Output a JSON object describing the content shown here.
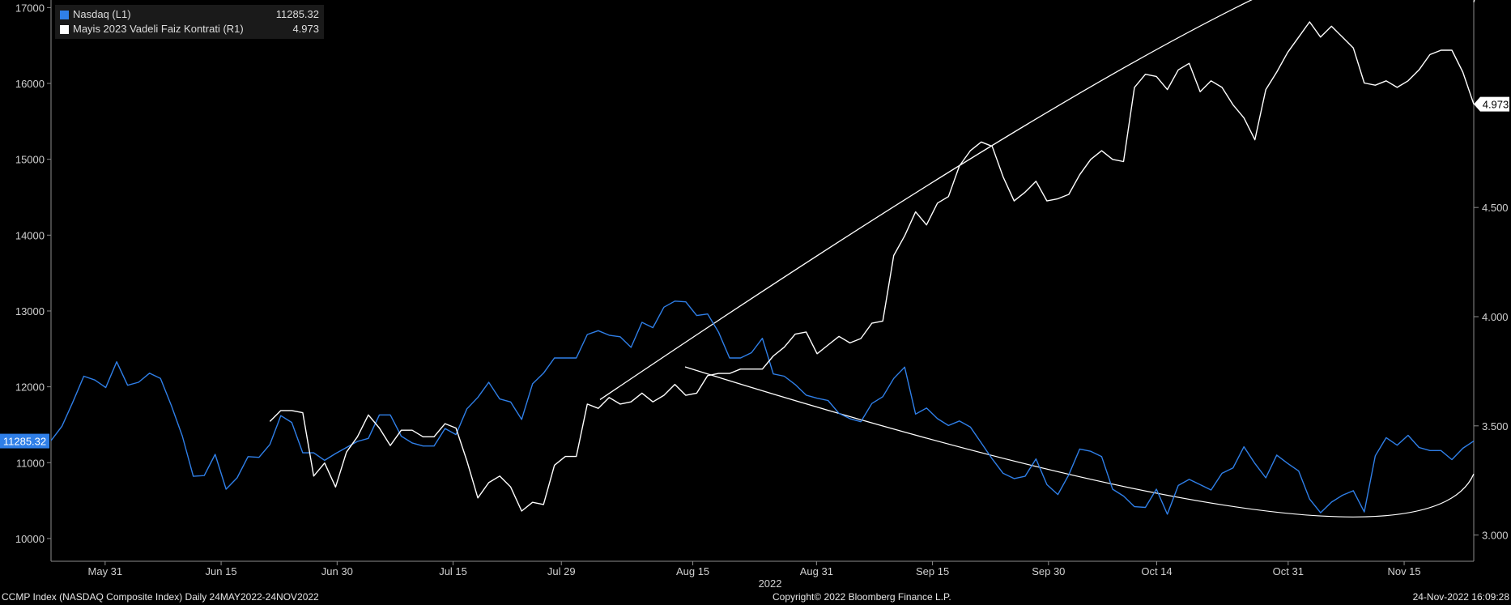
{
  "legend": {
    "items": [
      {
        "label": "Nasdaq (L1)",
        "value": "11285.32",
        "color": "#2f7fe8"
      },
      {
        "label": "Mayis 2023 Vadeli Faiz Kontrati (R1)",
        "value": "4.973",
        "color": "#ffffff"
      }
    ]
  },
  "footer": {
    "left": "CCMP Index (NASDAQ Composite Index)  Daily 24MAY2022-24NOV2022",
    "center": "Copyright© 2022 Bloomberg Finance L.P.",
    "right": "24-Nov-2022 16:09:28"
  },
  "chart_data": {
    "type": "line",
    "x_range": [
      "2022-05-24",
      "2022-11-24"
    ],
    "x_ticks": [
      "May 31",
      "Jun 15",
      "Jun 30",
      "Jul 15",
      "Jul 29",
      "Aug 15",
      "Aug 31",
      "Sep 15",
      "Sep 30",
      "Oct 14",
      "Oct 31",
      "Nov 15"
    ],
    "x_year_label": "2022",
    "left_axis": {
      "ylim": [
        9700,
        17100
      ],
      "ticks": [
        10000,
        11000,
        12000,
        13000,
        14000,
        15000,
        16000,
        17000
      ]
    },
    "right_axis": {
      "ylim": [
        2.88,
        5.45
      ],
      "ticks": [
        "3.000",
        "3.500",
        "4.000",
        "4.500"
      ]
    },
    "last_value_labels": {
      "left": "11285.32",
      "right": "4.973"
    },
    "series": [
      {
        "name": "Nasdaq (L1)",
        "axis": "left",
        "color": "#2f7fe8",
        "values": [
          11290,
          11480,
          11800,
          12140,
          12090,
          11990,
          12330,
          12020,
          12060,
          12180,
          12110,
          11750,
          11350,
          10820,
          10830,
          11110,
          10650,
          10800,
          11080,
          11070,
          11240,
          11620,
          11530,
          11130,
          11130,
          11030,
          11120,
          11200,
          11280,
          11320,
          11630,
          11630,
          11350,
          11260,
          11220,
          11220,
          11450,
          11370,
          11710,
          11860,
          12060,
          11840,
          11800,
          11570,
          12040,
          12180,
          12380,
          12380,
          12380,
          12690,
          12740,
          12680,
          12660,
          12520,
          12850,
          12780,
          13050,
          13130,
          13120,
          12940,
          12960,
          12720,
          12380,
          12380,
          12450,
          12640,
          12170,
          12140,
          12030,
          11890,
          11850,
          11820,
          11650,
          11580,
          11540,
          11780,
          11870,
          12110,
          12260,
          11640,
          11720,
          11580,
          11490,
          11550,
          11470,
          11260,
          11050,
          10860,
          10790,
          10820,
          11050,
          10710,
          10580,
          10840,
          11180,
          11150,
          11080,
          10650,
          10560,
          10420,
          10410,
          10650,
          10320,
          10700,
          10780,
          10710,
          10640,
          10860,
          10930,
          11210,
          10990,
          10800,
          11100,
          10990,
          10890,
          10520,
          10340,
          10480,
          10570,
          10630,
          10350,
          11090,
          11330,
          11230,
          11360,
          11200,
          11160,
          11160,
          11040,
          11190,
          11285
        ]
      },
      {
        "name": "Mayis 2023 Vadeli Faiz Kontrati (R1)",
        "axis": "right",
        "color": "#ffffff",
        "values": [
          null,
          null,
          null,
          null,
          null,
          null,
          null,
          null,
          null,
          null,
          null,
          null,
          null,
          null,
          null,
          null,
          null,
          null,
          null,
          null,
          3.52,
          3.57,
          3.57,
          3.56,
          3.27,
          3.33,
          3.22,
          3.38,
          3.45,
          3.55,
          3.49,
          3.41,
          3.48,
          3.48,
          3.45,
          3.45,
          3.51,
          3.49,
          3.34,
          3.17,
          3.24,
          3.27,
          3.22,
          3.11,
          3.15,
          3.14,
          3.32,
          3.36,
          3.36,
          3.6,
          3.58,
          3.63,
          3.6,
          3.61,
          3.65,
          3.61,
          3.64,
          3.69,
          3.64,
          3.65,
          3.73,
          3.74,
          3.74,
          3.76,
          3.76,
          3.76,
          3.82,
          3.86,
          3.92,
          3.93,
          3.83,
          3.87,
          3.91,
          3.88,
          3.9,
          3.97,
          3.98,
          4.28,
          4.37,
          4.48,
          4.42,
          4.52,
          4.55,
          4.69,
          4.76,
          4.8,
          4.78,
          4.64,
          4.53,
          4.57,
          4.62,
          4.53,
          4.54,
          4.56,
          4.65,
          4.72,
          4.76,
          4.72,
          4.71,
          5.05,
          5.11,
          5.1,
          5.04,
          5.13,
          5.16,
          5.03,
          5.08,
          5.05,
          4.97,
          4.91,
          4.81,
          5.04,
          5.12,
          5.21,
          5.28,
          5.35,
          5.28,
          5.33,
          5.28,
          5.23,
          5.07,
          5.06,
          5.08,
          5.05,
          5.08,
          5.13,
          5.2,
          5.22,
          5.22,
          5.12,
          4.973
        ]
      }
    ],
    "annotations": [
      {
        "type": "curve",
        "description": "upper arc",
        "points": [
          [
            "2022-08-03",
            3.62
          ],
          [
            "2022-10-31",
            5.53
          ],
          [
            "2022-11-24",
            5.44
          ]
        ]
      },
      {
        "type": "curve",
        "description": "lower arc",
        "points": [
          [
            "2022-08-14",
            3.77
          ],
          [
            "2022-10-26",
            3.12
          ],
          [
            "2022-11-24",
            3.28
          ]
        ]
      }
    ]
  }
}
